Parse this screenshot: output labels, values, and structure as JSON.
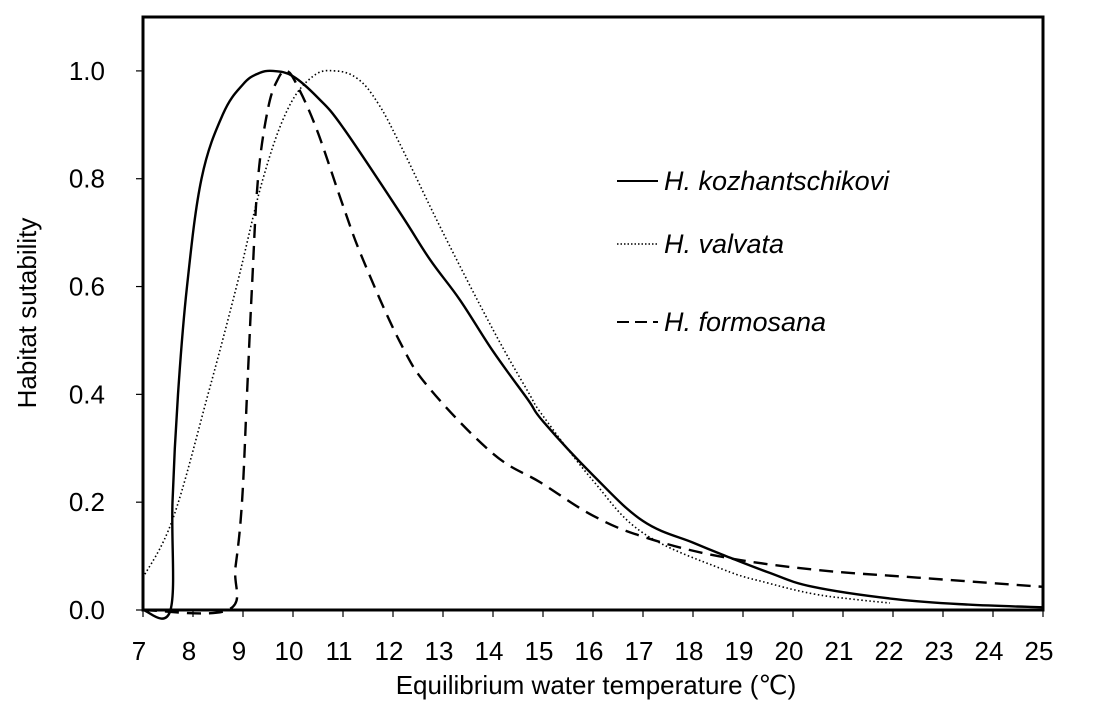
{
  "chart_data": {
    "type": "line",
    "title": "",
    "xlabel": "Equilibrium water temperature (℃)",
    "ylabel": "Habitat sutability",
    "xlim": [
      7,
      25
    ],
    "ylim": [
      0,
      1.1
    ],
    "xticks": [
      7,
      8,
      9,
      10,
      11,
      12,
      13,
      14,
      15,
      16,
      17,
      18,
      19,
      20,
      21,
      22,
      23,
      24,
      25
    ],
    "yticks": [
      "0.0",
      "0.2",
      "0.4",
      "0.6",
      "0.8",
      "1.0"
    ],
    "ytick_values": [
      0,
      0.2,
      0.4,
      0.6,
      0.8,
      1.0
    ],
    "grid": false,
    "legend_position": "upper-right",
    "series": [
      {
        "name": "H. kozhantschikovi",
        "style": "solid",
        "color": "#000000",
        "x": [
          7,
          7.55,
          7.59,
          7.7,
          7.88,
          8.17,
          8.6,
          9.0,
          9.3,
          9.6,
          10.0,
          10.5,
          11.0,
          12.14,
          12.74,
          13.34,
          14.0,
          14.7,
          15.0,
          16.0,
          17.0,
          18.0,
          18.58,
          19.5,
          20.4,
          22.06,
          23.5,
          25
        ],
        "y": [
          0,
          0,
          0.2,
          0.4,
          0.6,
          0.8,
          0.92,
          0.975,
          0.995,
          1.0,
          0.99,
          0.95,
          0.895,
          0.737,
          0.65,
          0.575,
          0.48,
          0.39,
          0.35,
          0.25,
          0.165,
          0.125,
          0.103,
          0.07,
          0.043,
          0.02,
          0.01,
          0.005
        ]
      },
      {
        "name": "H. valvata",
        "style": "dotted",
        "color": "#000000",
        "x": [
          7,
          7.6,
          8.3,
          8.87,
          9.4,
          9.9,
          10.4,
          10.85,
          11.3,
          11.7,
          12.14,
          13.0,
          14.0,
          14.7,
          15.0,
          16.0,
          17.0,
          18.58,
          19.5,
          20.4,
          21.2,
          21.94
        ],
        "y": [
          0.06,
          0.17,
          0.4,
          0.6,
          0.8,
          0.93,
          0.99,
          1.0,
          0.985,
          0.94,
          0.864,
          0.7,
          0.52,
          0.405,
          0.36,
          0.24,
          0.143,
          0.076,
          0.05,
          0.03,
          0.02,
          0.013
        ]
      },
      {
        "name": "H. formosana",
        "style": "dashed",
        "color": "#000000",
        "x": [
          7,
          8.7,
          8.85,
          8.98,
          9.08,
          9.18,
          9.3,
          9.5,
          9.7,
          9.88,
          10.1,
          10.48,
          11.0,
          11.4,
          12.14,
          12.74,
          14.0,
          14.96,
          16.0,
          17.0,
          18.5,
          20.4,
          22.5,
          25
        ],
        "y": [
          0,
          0,
          0.08,
          0.2,
          0.4,
          0.6,
          0.8,
          0.93,
          0.985,
          1.0,
          0.97,
          0.89,
          0.75,
          0.65,
          0.497,
          0.41,
          0.29,
          0.236,
          0.175,
          0.136,
          0.1,
          0.075,
          0.06,
          0.043
        ]
      }
    ]
  }
}
